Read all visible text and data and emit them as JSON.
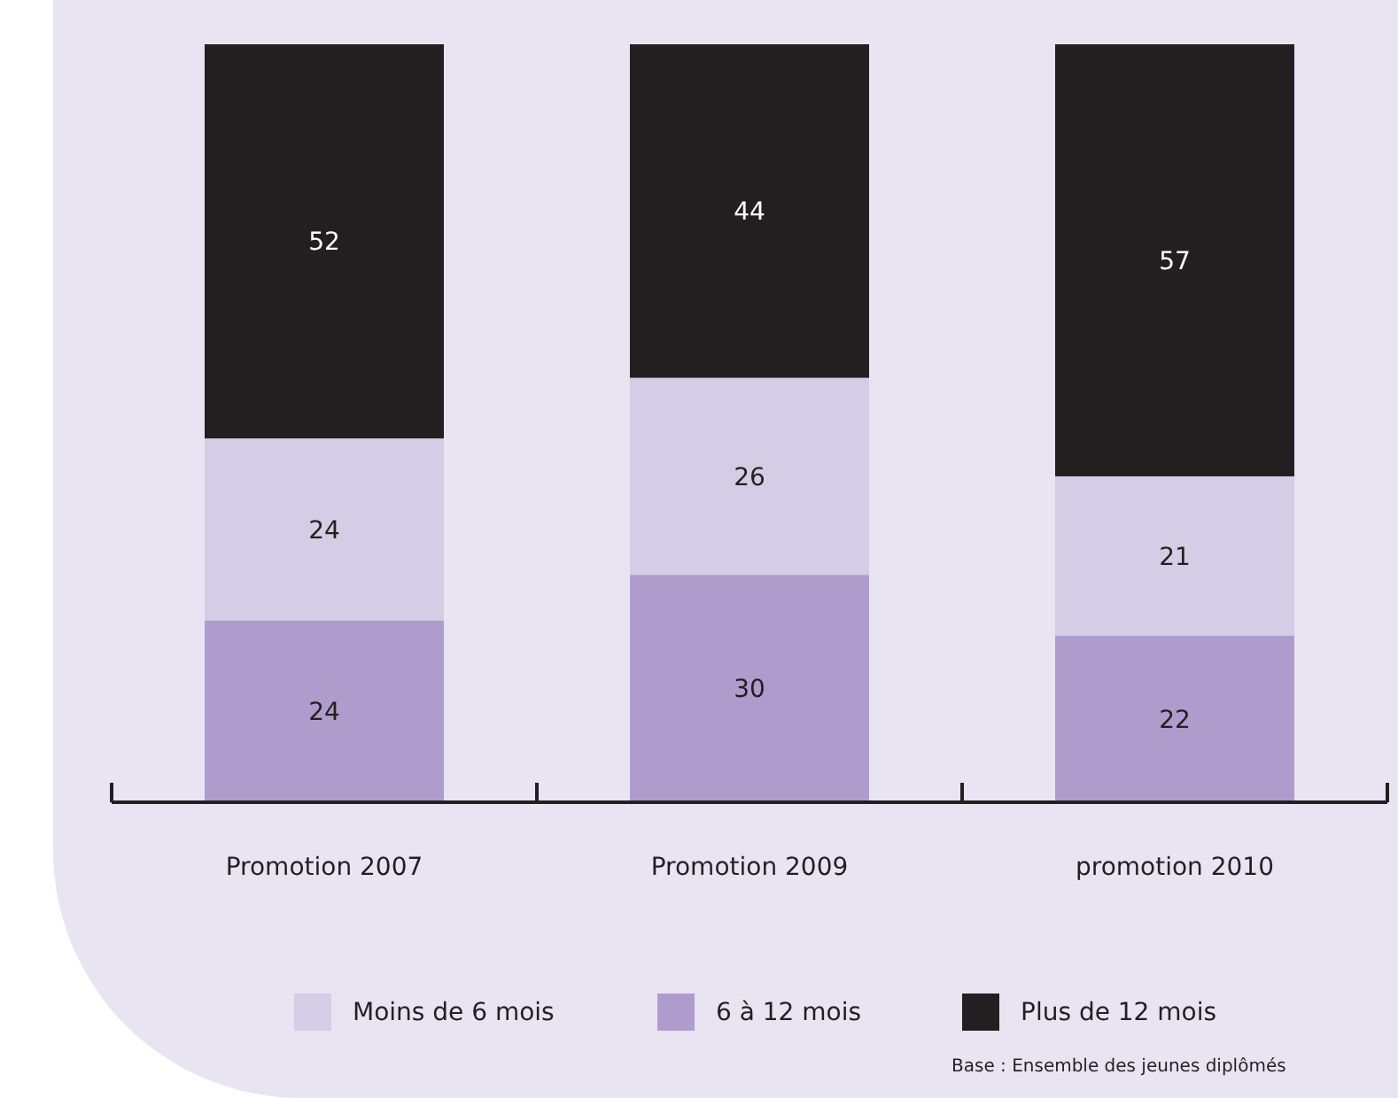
{
  "chart_data": {
    "type": "bar",
    "stacked": true,
    "data_labels": true,
    "legend": "bottom",
    "categories": [
      "Promotion 2007",
      "Promotion 2009",
      "promotion 2010"
    ],
    "series": [
      {
        "name": "6 à 12 mois",
        "color": "#b09ccc",
        "values": [
          24,
          30,
          22
        ]
      },
      {
        "name": "Moins de 6 mois",
        "color": "#d5cce5",
        "values": [
          24,
          26,
          21
        ]
      },
      {
        "name": "Plus de 12 mois",
        "color": "#231f20",
        "values": [
          52,
          44,
          57
        ]
      }
    ],
    "annotations": [
      "Base : Ensemble des jeunes diplômés"
    ]
  }
}
